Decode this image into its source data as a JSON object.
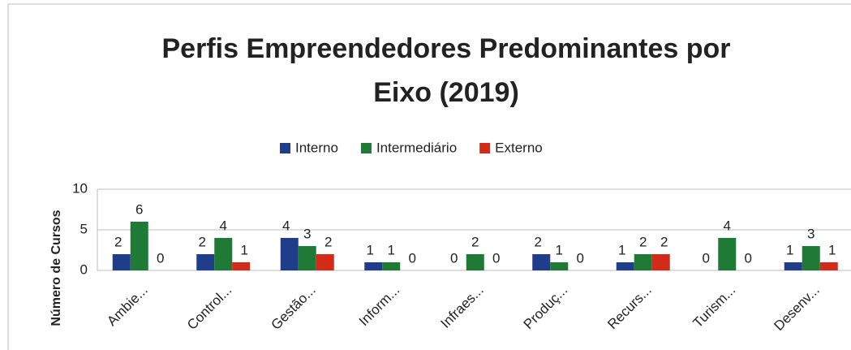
{
  "chart_data": {
    "type": "bar",
    "title": "Perfis Empreendedores Predominantes por Eixo (2019)",
    "y_label": "Número de Cursos",
    "categories": [
      "Ambie...",
      "Control...",
      "Gestão...",
      "Inform...",
      "Infraes...",
      "Produç...",
      "Recurs...",
      "Turism...",
      "Desenv..."
    ],
    "series": [
      {
        "name": "Interno",
        "color": "#203d8c",
        "values": [
          2,
          2,
          4,
          1,
          0,
          2,
          1,
          0,
          1
        ]
      },
      {
        "name": "Intermediário",
        "color": "#1f7a35",
        "values": [
          6,
          4,
          3,
          1,
          2,
          1,
          2,
          4,
          3
        ]
      },
      {
        "name": "Externo",
        "color": "#d42a1a",
        "values": [
          0,
          1,
          2,
          0,
          0,
          0,
          2,
          0,
          1
        ]
      }
    ],
    "ylim": [
      0,
      10
    ],
    "yticks": [
      0,
      5,
      10
    ],
    "grid": true,
    "legend": "top"
  }
}
